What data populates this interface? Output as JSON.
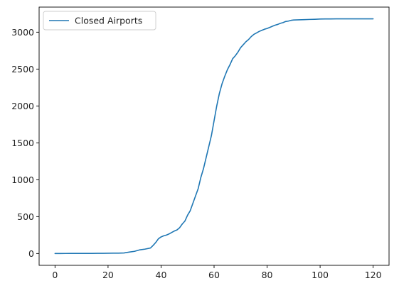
{
  "chart_data": {
    "type": "line",
    "title": "",
    "xlabel": "",
    "ylabel": "",
    "xlim": [
      -6,
      126
    ],
    "ylim": [
      -160,
      3340
    ],
    "grid": false,
    "legend_placement": "top-left",
    "x_ticks": [
      0,
      20,
      40,
      60,
      80,
      100,
      120
    ],
    "y_ticks": [
      0,
      500,
      1000,
      1500,
      2000,
      2500,
      3000
    ],
    "series": [
      {
        "name": "Closed Airports",
        "color": "#1f77b4",
        "x": [
          0,
          2,
          4,
          6,
          8,
          10,
          12,
          14,
          16,
          18,
          20,
          22,
          24,
          26,
          28,
          30,
          32,
          34,
          36,
          37,
          38,
          39,
          40,
          41,
          42,
          43,
          44,
          45,
          46,
          47,
          48,
          49,
          50,
          51,
          52,
          53,
          54,
          55,
          56,
          57,
          58,
          59,
          60,
          61,
          62,
          63,
          64,
          65,
          66,
          67,
          68,
          69,
          70,
          71,
          72,
          73,
          74,
          75,
          76,
          77,
          78,
          79,
          80,
          81,
          82,
          83,
          84,
          85,
          86,
          87,
          88,
          89,
          90,
          92,
          94,
          96,
          98,
          100,
          102,
          104,
          106,
          108,
          110,
          112,
          114,
          116,
          118,
          120
        ],
        "y": [
          0,
          0,
          1,
          2,
          2,
          2,
          2,
          2,
          3,
          3,
          4,
          5,
          5,
          8,
          20,
          30,
          50,
          60,
          75,
          110,
          150,
          200,
          225,
          240,
          250,
          265,
          285,
          305,
          320,
          350,
          400,
          440,
          520,
          580,
          680,
          780,
          880,
          1030,
          1150,
          1300,
          1450,
          1600,
          1800,
          2000,
          2170,
          2300,
          2400,
          2490,
          2560,
          2640,
          2680,
          2730,
          2790,
          2830,
          2870,
          2900,
          2940,
          2970,
          2990,
          3010,
          3025,
          3040,
          3050,
          3065,
          3080,
          3095,
          3105,
          3120,
          3130,
          3145,
          3150,
          3160,
          3165,
          3168,
          3170,
          3173,
          3175,
          3178,
          3180,
          3180,
          3181,
          3181,
          3181,
          3181,
          3181,
          3181,
          3181,
          3181
        ]
      }
    ]
  }
}
